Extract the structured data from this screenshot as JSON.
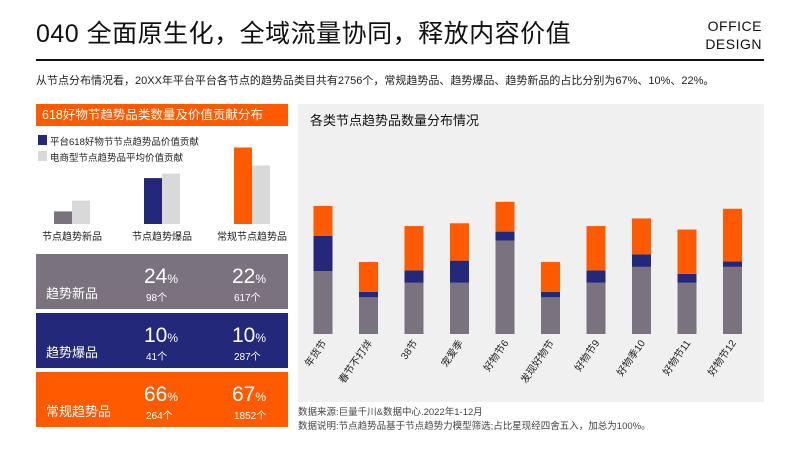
{
  "header": {
    "title": "040 全面原生化，全域流量协同，释放内容价值",
    "brand_line1": "OFFICE",
    "brand_line2": "DESIGN",
    "intro": "从节点分布情况看，20XX年平台平台各节点的趋势品类目共有2756个，常规趋势品、趋势爆品、趋势新品的占比分别为67%、10%、22%。"
  },
  "colors": {
    "orange": "#ff5a00",
    "navy": "#24287a",
    "gray": "#7b7280",
    "light_gray": "#d9d9d9",
    "panel": "#f0f0f0"
  },
  "left_chart": {
    "title": "618好物节趋势品类数量及价值贡献分布",
    "legend": [
      {
        "label": "平台618好物节节点趋势品价值贡献"
      },
      {
        "label": "电商型节点趋势品平均价值贡献"
      }
    ],
    "groups": [
      {
        "label": "节点趋势新品",
        "platform_value": 14,
        "average_value": 26,
        "platform_color": "#7b7280"
      },
      {
        "label": "节点趋势爆品",
        "platform_value": 51,
        "average_value": 56,
        "platform_color": "#24287a"
      },
      {
        "label": "常规节点趋势品",
        "platform_value": 85,
        "average_value": 65,
        "platform_color": "#ff5a00"
      }
    ]
  },
  "stats": [
    {
      "label": "趋势新品",
      "color": "#7b7280",
      "col1_pct": "24",
      "col1_count": "98个",
      "col2_pct": "22",
      "col2_count": "617个",
      "unit": "%"
    },
    {
      "label": "趋势爆品",
      "color": "#24287a",
      "col1_pct": "10",
      "col1_count": "41个",
      "col2_pct": "10",
      "col2_count": "287个",
      "unit": "%"
    },
    {
      "label": "常规趋势品",
      "color": "#ff5a00",
      "col1_pct": "66",
      "col1_count": "264个",
      "col2_pct": "67",
      "col2_count": "1852个",
      "unit": "%"
    }
  ],
  "chart_data": {
    "type": "bar",
    "title": "各类节点趋势品数量分布情况",
    "stacked": true,
    "categories": [
      "年货节",
      "春节不打烊",
      "38节",
      "宠爱季",
      "好物节6",
      "发现好物节",
      "好物节9",
      "好物季10",
      "好物节11",
      "好物节12"
    ],
    "series": [
      {
        "color": "#7b7280",
        "values": [
          91,
          53,
          74,
          74,
          135,
          53,
          74,
          97,
          74,
          97
        ]
      },
      {
        "color": "#24287a",
        "values": [
          51,
          8,
          18,
          32,
          13,
          8,
          18,
          18,
          13,
          8
        ]
      },
      {
        "color": "#ff5a00",
        "values": [
          43,
          43,
          64,
          54,
          43,
          43,
          64,
          52,
          64,
          76
        ]
      }
    ],
    "grid": false
  },
  "footer": {
    "source": "数据来源:巨量千川&数据中心.2022年1-12月",
    "note": "数据说明:节点趋势品基于节点趋势力模型筛选;占比星现经四舍五入，加总为100%。"
  }
}
